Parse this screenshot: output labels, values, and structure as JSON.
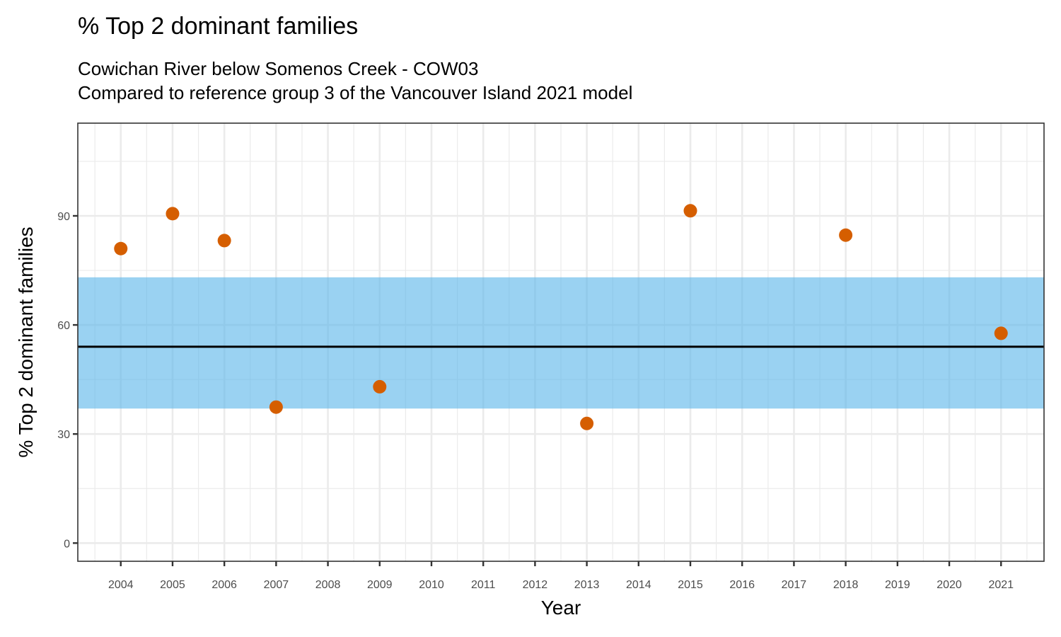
{
  "chart_data": {
    "type": "scatter",
    "title": "% Top 2 dominant families",
    "subtitle_lines": [
      "Cowichan River below Somenos Creek - COW03",
      "Compared to reference group 3 of the Vancouver Island 2021 model"
    ],
    "xlabel": "Year",
    "ylabel": "% Top 2 dominant families",
    "xlim": [
      2003.17,
      2021.83
    ],
    "ylim": [
      -5.0,
      115.5
    ],
    "x_ticks": [
      2004,
      2005,
      2006,
      2007,
      2008,
      2009,
      2010,
      2011,
      2012,
      2013,
      2014,
      2015,
      2016,
      2017,
      2018,
      2019,
      2020,
      2021
    ],
    "y_ticks": [
      0,
      30,
      60,
      90
    ],
    "y_minor_ticks": [
      15,
      45,
      75,
      105
    ],
    "grid": true,
    "legend": "none",
    "series": [
      {
        "name": "Site values",
        "color": "#D55E00",
        "x": [
          2004,
          2005,
          2006,
          2007,
          2009,
          2013,
          2015,
          2018,
          2021
        ],
        "y": [
          81.0,
          90.6,
          83.2,
          37.4,
          43.0,
          32.9,
          91.4,
          84.7,
          57.7
        ]
      }
    ],
    "reference_band": {
      "low": 37.0,
      "high": 73.1,
      "color": "#56B4E9"
    },
    "reference_line": {
      "value": 54.0,
      "color": "#000000"
    }
  }
}
